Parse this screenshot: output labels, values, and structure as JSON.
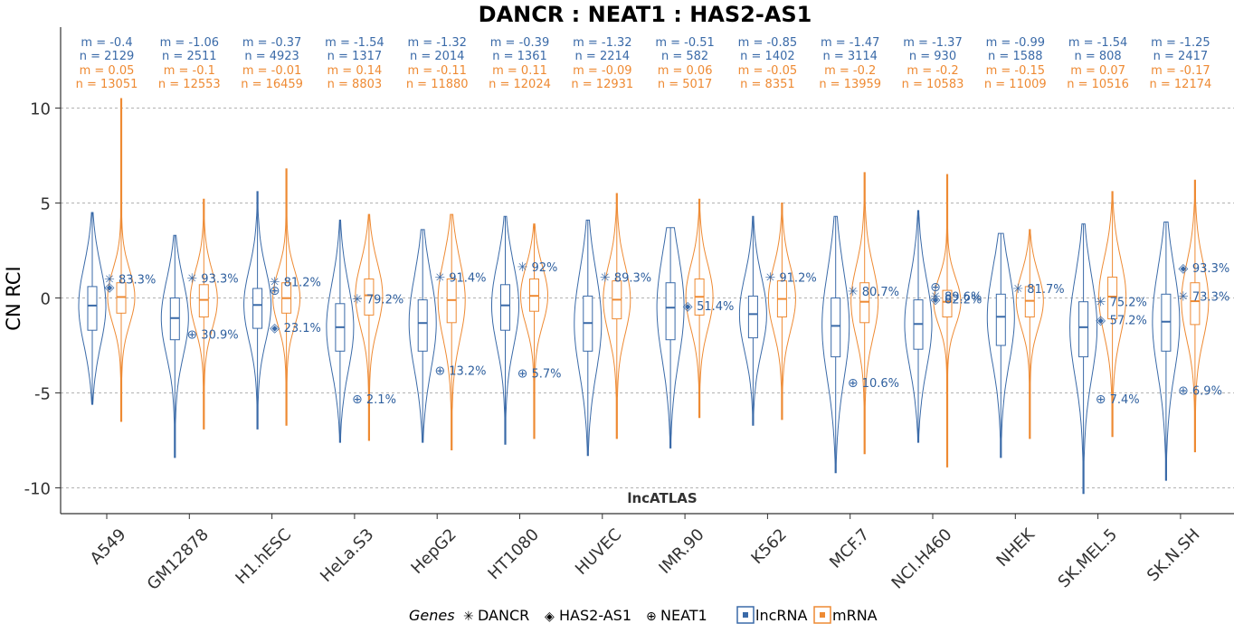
{
  "chart_data": {
    "type": "violin",
    "title": "DANCR : NEAT1 : HAS2-AS1",
    "ylabel": "CN RCI",
    "panel_label": "lncATLAS",
    "ylim": [
      -11,
      14
    ],
    "yticks": [
      10,
      5,
      0,
      -5,
      -10
    ],
    "ytick_labels": [
      "10",
      "5",
      "0",
      "-5",
      "-10"
    ],
    "grid": "horizontal dashed",
    "categories": [
      "A549",
      "GM12878",
      "H1.hESC",
      "HeLa.S3",
      "HepG2",
      "HT1080",
      "HUVEC",
      "IMR.90",
      "K562",
      "MCF.7",
      "NCI.H460",
      "NHEK",
      "SK.MEL.5",
      "SK.N.SH"
    ],
    "colors": {
      "lncRNA": "#3a6aa8",
      "mRNA": "#ee8a33"
    },
    "stats": [
      {
        "m_lnc": "m = -0.4",
        "n_lnc": "n = 2129",
        "m_mrna": "m = 0.05",
        "n_mrna": "n = 13051"
      },
      {
        "m_lnc": "m = -1.06",
        "n_lnc": "n = 2511",
        "m_mrna": "m = -0.1",
        "n_mrna": "n = 12553"
      },
      {
        "m_lnc": "m = -0.37",
        "n_lnc": "n = 4923",
        "m_mrna": "m = -0.01",
        "n_mrna": "n = 16459"
      },
      {
        "m_lnc": "m = -1.54",
        "n_lnc": "n = 1317",
        "m_mrna": "m = 0.14",
        "n_mrna": "n = 8803"
      },
      {
        "m_lnc": "m = -1.32",
        "n_lnc": "n = 2014",
        "m_mrna": "m = -0.11",
        "n_mrna": "n = 11880"
      },
      {
        "m_lnc": "m = -0.39",
        "n_lnc": "n = 1361",
        "m_mrna": "m = 0.11",
        "n_mrna": "n = 12024"
      },
      {
        "m_lnc": "m = -1.32",
        "n_lnc": "n = 2214",
        "m_mrna": "m = -0.09",
        "n_mrna": "n = 12931"
      },
      {
        "m_lnc": "m = -0.51",
        "n_lnc": "n = 582",
        "m_mrna": "m = 0.06",
        "n_mrna": "n = 5017"
      },
      {
        "m_lnc": "m = -0.85",
        "n_lnc": "n = 1402",
        "m_mrna": "m = -0.05",
        "n_mrna": "n = 8351"
      },
      {
        "m_lnc": "m = -1.47",
        "n_lnc": "n = 3114",
        "m_mrna": "m = -0.2",
        "n_mrna": "n = 13959"
      },
      {
        "m_lnc": "m = -1.37",
        "n_lnc": "n = 930",
        "m_mrna": "m = -0.2",
        "n_mrna": "n = 10583"
      },
      {
        "m_lnc": "m = -0.99",
        "n_lnc": "n = 1588",
        "m_mrna": "m = -0.15",
        "n_mrna": "n = 11009"
      },
      {
        "m_lnc": "m = -1.54",
        "n_lnc": "n = 808",
        "m_mrna": "m = 0.07",
        "n_mrna": "n = 10516"
      },
      {
        "m_lnc": "m = -1.25",
        "n_lnc": "n = 2417",
        "m_mrna": "m = -0.17",
        "n_mrna": "n = 12174"
      }
    ],
    "lnc_dist": [
      {
        "min": -5.6,
        "q1": -1.7,
        "median": -0.4,
        "q3": 0.6,
        "max": 4.5
      },
      {
        "min": -8.4,
        "q1": -2.2,
        "median": -1.06,
        "q3": 0.0,
        "max": 3.3
      },
      {
        "min": -6.9,
        "q1": -1.6,
        "median": -0.37,
        "q3": 0.5,
        "max": 5.6
      },
      {
        "min": -7.6,
        "q1": -2.8,
        "median": -1.54,
        "q3": -0.3,
        "max": 4.1
      },
      {
        "min": -7.6,
        "q1": -2.8,
        "median": -1.32,
        "q3": -0.1,
        "max": 3.6
      },
      {
        "min": -7.7,
        "q1": -1.7,
        "median": -0.39,
        "q3": 0.7,
        "max": 4.3
      },
      {
        "min": -8.3,
        "q1": -2.8,
        "median": -1.32,
        "q3": 0.1,
        "max": 4.1
      },
      {
        "min": -7.9,
        "q1": -2.2,
        "median": -0.51,
        "q3": 0.8,
        "max": 3.7
      },
      {
        "min": -6.7,
        "q1": -2.1,
        "median": -0.85,
        "q3": 0.1,
        "max": 4.3
      },
      {
        "min": -9.2,
        "q1": -3.1,
        "median": -1.47,
        "q3": 0.0,
        "max": 4.3
      },
      {
        "min": -7.6,
        "q1": -2.7,
        "median": -1.37,
        "q3": -0.1,
        "max": 4.6
      },
      {
        "min": -8.4,
        "q1": -2.5,
        "median": -0.99,
        "q3": 0.2,
        "max": 3.4
      },
      {
        "min": -10.3,
        "q1": -3.1,
        "median": -1.54,
        "q3": -0.2,
        "max": 3.9
      },
      {
        "min": -9.6,
        "q1": -2.8,
        "median": -1.25,
        "q3": 0.2,
        "max": 4.0
      }
    ],
    "mrna_dist": [
      {
        "min": -6.5,
        "q1": -0.8,
        "median": 0.05,
        "q3": 0.8,
        "max": 10.5
      },
      {
        "min": -6.9,
        "q1": -1.0,
        "median": -0.1,
        "q3": 0.7,
        "max": 5.2
      },
      {
        "min": -6.7,
        "q1": -0.8,
        "median": -0.01,
        "q3": 0.8,
        "max": 6.8
      },
      {
        "min": -7.5,
        "q1": -0.9,
        "median": 0.14,
        "q3": 1.0,
        "max": 4.4
      },
      {
        "min": -8.0,
        "q1": -1.3,
        "median": -0.11,
        "q3": 1.0,
        "max": 4.4
      },
      {
        "min": -7.4,
        "q1": -0.7,
        "median": 0.11,
        "q3": 1.0,
        "max": 3.9
      },
      {
        "min": -7.4,
        "q1": -1.1,
        "median": -0.09,
        "q3": 0.9,
        "max": 5.5
      },
      {
        "min": -6.3,
        "q1": -0.9,
        "median": 0.06,
        "q3": 1.0,
        "max": 5.2
      },
      {
        "min": -6.4,
        "q1": -1.0,
        "median": -0.05,
        "q3": 0.9,
        "max": 5.0
      },
      {
        "min": -8.2,
        "q1": -1.3,
        "median": -0.2,
        "q3": 0.8,
        "max": 6.6
      },
      {
        "min": -8.9,
        "q1": -1.0,
        "median": -0.2,
        "q3": 0.4,
        "max": 6.5
      },
      {
        "min": -7.4,
        "q1": -1.0,
        "median": -0.15,
        "q3": 0.6,
        "max": 3.6
      },
      {
        "min": -7.3,
        "q1": -1.1,
        "median": 0.07,
        "q3": 1.1,
        "max": 5.6
      },
      {
        "min": -8.1,
        "q1": -1.4,
        "median": -0.17,
        "q3": 0.8,
        "max": 6.2
      }
    ],
    "genes": [
      {
        "name": "DANCR",
        "symbol": "✳",
        "points": [
          {
            "cell": "A549",
            "value": 1.0,
            "pct": "83.3%"
          },
          {
            "cell": "GM12878",
            "value": 1.05,
            "pct": "93.3%"
          },
          {
            "cell": "H1.hESC",
            "value": 0.85,
            "pct": "81.2%"
          },
          {
            "cell": "HeLa.S3",
            "value": -0.05,
            "pct": "79.2%"
          },
          {
            "cell": "HepG2",
            "value": 1.1,
            "pct": "91.4%"
          },
          {
            "cell": "HT1080",
            "value": 1.65,
            "pct": "92%"
          },
          {
            "cell": "HUVEC",
            "value": 1.1,
            "pct": "89.3%"
          },
          {
            "cell": "IMR.90",
            "value": null,
            "pct": ""
          },
          {
            "cell": "K562",
            "value": 1.1,
            "pct": "91.2%"
          },
          {
            "cell": "MCF.7",
            "value": 0.35,
            "pct": "80.7%"
          },
          {
            "cell": "NCI.H460",
            "value": 0.1,
            "pct": "89.6%"
          },
          {
            "cell": "NHEK",
            "value": 0.5,
            "pct": "81.7%"
          },
          {
            "cell": "SK.MEL.5",
            "value": -0.2,
            "pct": "75.2%"
          },
          {
            "cell": "SK.N.SH",
            "value": 0.1,
            "pct": "73.3%"
          }
        ]
      },
      {
        "name": "HAS2-AS1",
        "symbol": "◈",
        "points": [
          {
            "cell": "A549",
            "value": 0.6,
            "pct": ""
          },
          {
            "cell": "GM12878",
            "value": null,
            "pct": ""
          },
          {
            "cell": "H1.hESC",
            "value": -1.55,
            "pct": "23.1%"
          },
          {
            "cell": "HeLa.S3",
            "value": null,
            "pct": ""
          },
          {
            "cell": "HepG2",
            "value": null,
            "pct": ""
          },
          {
            "cell": "HT1080",
            "value": null,
            "pct": ""
          },
          {
            "cell": "HUVEC",
            "value": null,
            "pct": ""
          },
          {
            "cell": "IMR.90",
            "value": -0.4,
            "pct": "51.4%"
          },
          {
            "cell": "K562",
            "value": null,
            "pct": ""
          },
          {
            "cell": "MCF.7",
            "value": null,
            "pct": ""
          },
          {
            "cell": "NCI.H460",
            "value": -0.05,
            "pct": "82.2%"
          },
          {
            "cell": "NHEK",
            "value": null,
            "pct": ""
          },
          {
            "cell": "SK.MEL.5",
            "value": -1.15,
            "pct": "57.2%"
          },
          {
            "cell": "SK.N.SH",
            "value": 1.6,
            "pct": "93.3%"
          }
        ]
      },
      {
        "name": "NEAT1",
        "symbol": "⊕",
        "points": [
          {
            "cell": "A549",
            "value": null,
            "pct": ""
          },
          {
            "cell": "GM12878",
            "value": -1.9,
            "pct": "30.9%"
          },
          {
            "cell": "H1.hESC",
            "value": 0.4,
            "pct": ""
          },
          {
            "cell": "HeLa.S3",
            "value": -5.3,
            "pct": "2.1%"
          },
          {
            "cell": "HepG2",
            "value": -3.8,
            "pct": "13.2%"
          },
          {
            "cell": "HT1080",
            "value": -3.95,
            "pct": "5.7%"
          },
          {
            "cell": "HUVEC",
            "value": null,
            "pct": ""
          },
          {
            "cell": "IMR.90",
            "value": null,
            "pct": ""
          },
          {
            "cell": "K562",
            "value": null,
            "pct": ""
          },
          {
            "cell": "MCF.7",
            "value": -4.45,
            "pct": "10.6%"
          },
          {
            "cell": "NCI.H460",
            "value": 0.6,
            "pct": ""
          },
          {
            "cell": "NHEK",
            "value": null,
            "pct": ""
          },
          {
            "cell": "SK.MEL.5",
            "value": -5.3,
            "pct": "7.4%"
          },
          {
            "cell": "SK.N.SH",
            "value": -4.85,
            "pct": "6.9%"
          }
        ]
      }
    ],
    "legend": {
      "genes_title": "Genes",
      "items": [
        "DANCR",
        "HAS2-AS1",
        "NEAT1"
      ],
      "symbols": [
        "✳",
        "◈",
        "⊕"
      ],
      "types": [
        "lncRNA",
        "mRNA"
      ]
    }
  }
}
